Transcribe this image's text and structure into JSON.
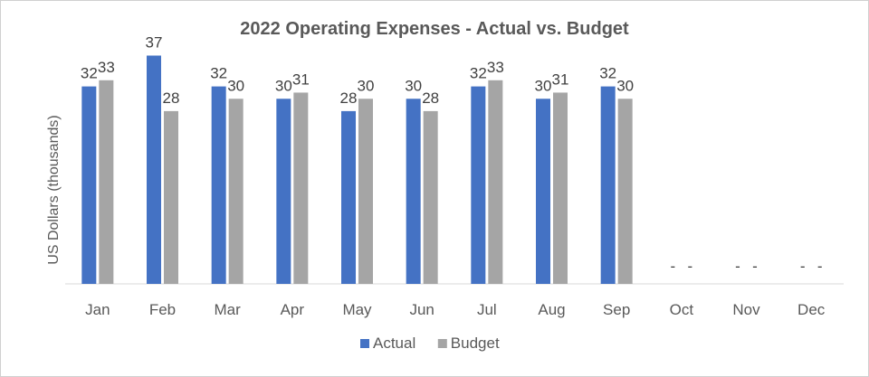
{
  "chart_data": {
    "type": "bar",
    "title": "2022 Operating Expenses - Actual vs. Budget",
    "xlabel": "",
    "ylabel": "US Dollars (thousands)",
    "categories": [
      "Jan",
      "Feb",
      "Mar",
      "Apr",
      "May",
      "Jun",
      "Jul",
      "Aug",
      "Sep",
      "Oct",
      "Nov",
      "Dec"
    ],
    "series": [
      {
        "name": "Actual",
        "color": "#4472C4",
        "values": [
          32,
          37,
          32,
          30,
          28,
          30,
          32,
          30,
          32,
          null,
          null,
          null
        ],
        "labels": [
          "32",
          "37",
          "32",
          "30",
          "28",
          "30",
          "32",
          "30",
          "32",
          "-",
          "-",
          "-"
        ]
      },
      {
        "name": "Budget",
        "color": "#A5A5A5",
        "values": [
          33,
          28,
          30,
          31,
          30,
          28,
          33,
          31,
          30,
          null,
          null,
          null
        ],
        "labels": [
          "33",
          "28",
          "30",
          "31",
          "30",
          "28",
          "33",
          "31",
          "30",
          "-",
          "-",
          "-"
        ]
      }
    ],
    "ylim": [
      0,
      40
    ],
    "grid": false,
    "legend": "bottom"
  }
}
